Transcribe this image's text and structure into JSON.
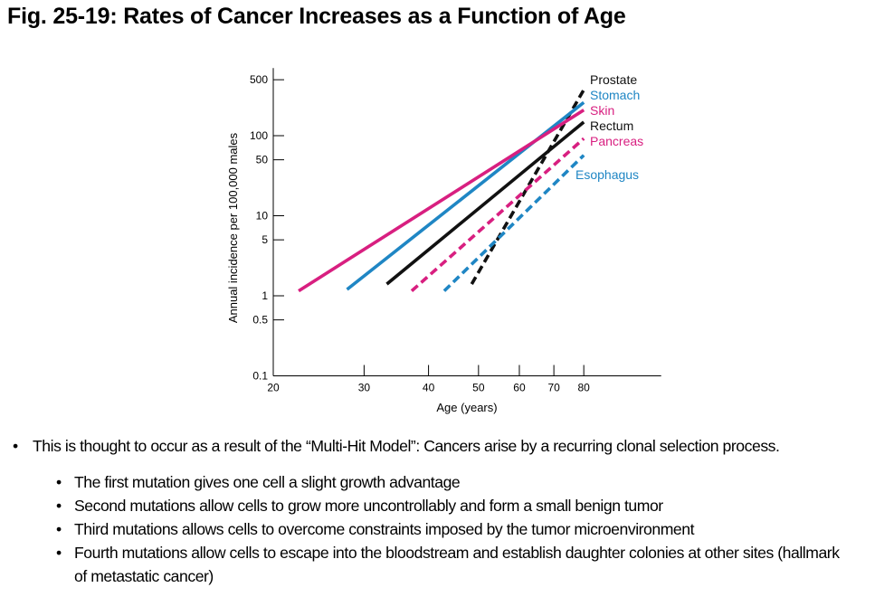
{
  "title": "Fig. 25-19: Rates of Cancer Increases as a Function of Age",
  "chart_data": {
    "type": "line",
    "xlabel": "Age (years)",
    "ylabel": "Annual incidence per 100,000 males",
    "xscale": "log",
    "yscale": "log",
    "xlim": [
      20,
      113
    ],
    "ylim": [
      0.1,
      700
    ],
    "xticks": [
      20,
      30,
      40,
      50,
      60,
      70,
      80
    ],
    "xtick_labels": [
      "20",
      "30",
      "40",
      "50",
      "60",
      "70",
      "80"
    ],
    "yticks": [
      0.1,
      0.5,
      1,
      5,
      10,
      50,
      100,
      500
    ],
    "ytick_labels": [
      "0.1",
      "0.5",
      "1",
      "5",
      "10",
      "50",
      "100",
      "500"
    ],
    "grid": false,
    "legend": "direct labels at right end of lines",
    "series": [
      {
        "name": "Prostate",
        "color": "#111111",
        "dashed": true,
        "x": [
          48.5,
          80
        ],
        "y": [
          1.4,
          374
        ]
      },
      {
        "name": "Stomach",
        "color": "#1f86c4",
        "dashed": false,
        "x": [
          27.8,
          80
        ],
        "y": [
          1.2,
          260
        ]
      },
      {
        "name": "Skin",
        "color": "#d81f80",
        "dashed": false,
        "x": [
          22.4,
          80
        ],
        "y": [
          1.15,
          209
        ]
      },
      {
        "name": "Rectum",
        "color": "#111111",
        "dashed": false,
        "x": [
          33.2,
          80
        ],
        "y": [
          1.4,
          148
        ]
      },
      {
        "name": "Pancreas",
        "color": "#d81f80",
        "dashed": true,
        "x": [
          37.1,
          80
        ],
        "y": [
          1.15,
          92
        ]
      },
      {
        "name": "Esophagus",
        "color": "#1f86c4",
        "dashed": true,
        "x": [
          42.9,
          80
        ],
        "y": [
          1.15,
          57
        ]
      }
    ]
  },
  "bullets": {
    "main": "This is thought to occur as a result of the “Multi-Hit Model”: Cancers arise by a recurring clonal selection process.",
    "sub": [
      "The first mutation gives one cell a slight growth advantage",
      "Second mutations allow cells to grow more uncontrollably and form a small benign tumor",
      "Third mutations allows cells to overcome constraints imposed by the tumor microenvironment",
      "Fourth mutations allow cells to escape into the bloodstream and establish daughter colonies at other sites (hallmark of metastatic cancer)"
    ]
  }
}
